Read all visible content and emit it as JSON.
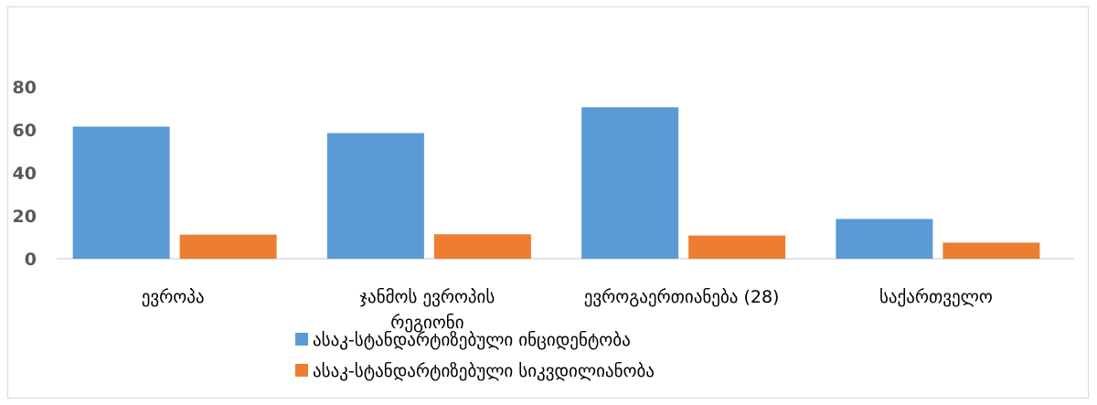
{
  "chart_data": {
    "type": "bar",
    "categories": [
      "ევროპა",
      "ჯანმოს ევროპის რეგიონი",
      "ევროგაერთიანება (28)",
      "საქართველო"
    ],
    "category_lines": [
      [
        "ევროპა"
      ],
      [
        "ჯანმოს ევროპის",
        "რეგიონი"
      ],
      [
        "ევროგაერთიანება (28)"
      ],
      [
        "საქართველო"
      ]
    ],
    "series": [
      {
        "name": "ასაკ-სტანდარტიზებული ინციდენტობა",
        "color": "#5b9bd5",
        "values": [
          61.5,
          58.5,
          70.5,
          18.5
        ]
      },
      {
        "name": "ასაკ-სტანდარტიზებული სიკვდილიანობა",
        "color": "#ed7d31",
        "values": [
          11.2,
          11.4,
          10.8,
          7.5
        ]
      }
    ],
    "ylim": [
      0,
      80
    ],
    "yticks": [
      0,
      20,
      40,
      60,
      80
    ],
    "grid": false,
    "legend": "bottom-left",
    "title": "",
    "xlabel": "",
    "ylabel": ""
  }
}
